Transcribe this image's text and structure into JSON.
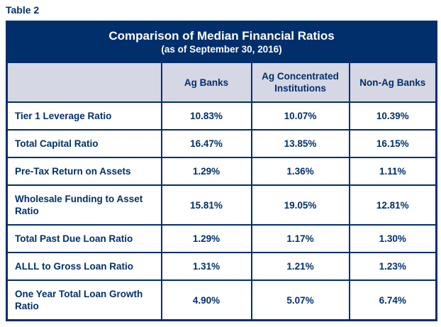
{
  "page": {
    "table_label": "Table 2"
  },
  "table": {
    "title": "Comparison of Median Financial Ratios",
    "subtitle": "(as of September 30, 2016)",
    "columns": [
      "",
      "Ag Banks",
      "Ag Concentrated Institutions",
      "Non-Ag Banks"
    ],
    "rows": [
      {
        "label": "Tier 1 Leverage Ratio",
        "values": [
          "10.83%",
          "10.07%",
          "10.39%"
        ]
      },
      {
        "label": "Total Capital Ratio",
        "values": [
          "16.47%",
          "13.85%",
          "16.15%"
        ]
      },
      {
        "label": "Pre-Tax Return on Assets",
        "values": [
          "1.29%",
          "1.36%",
          "1.11%"
        ]
      },
      {
        "label": "Wholesale Funding to Asset Ratio",
        "values": [
          "15.81%",
          "19.05%",
          "12.81%"
        ]
      },
      {
        "label": "Total Past Due Loan Ratio",
        "values": [
          "1.29%",
          "1.17%",
          "1.30%"
        ]
      },
      {
        "label": "ALLL to Gross Loan Ratio",
        "values": [
          "1.31%",
          "1.21%",
          "1.23%"
        ]
      },
      {
        "label": "One Year Total Loan Growth Ratio",
        "values": [
          "4.90%",
          "5.07%",
          "6.74%"
        ]
      }
    ],
    "colors": {
      "navy": "#002f6c",
      "header_row_bg": "#d5d7e4",
      "body_bg": "#ffffff",
      "title_text": "#ffffff",
      "cell_text": "#002f6c"
    }
  },
  "chart_data": {
    "type": "table",
    "title": "Comparison of Median Financial Ratios",
    "subtitle": "(as of September 30, 2016)",
    "categories": [
      "Ag Banks",
      "Ag Concentrated Institutions",
      "Non-Ag Banks"
    ],
    "series": [
      {
        "name": "Tier 1 Leverage Ratio",
        "values": [
          10.83,
          10.07,
          10.39
        ]
      },
      {
        "name": "Total Capital Ratio",
        "values": [
          16.47,
          13.85,
          16.15
        ]
      },
      {
        "name": "Pre-Tax Return on Assets",
        "values": [
          1.29,
          1.36,
          1.11
        ]
      },
      {
        "name": "Wholesale Funding to Asset Ratio",
        "values": [
          15.81,
          19.05,
          12.81
        ]
      },
      {
        "name": "Total Past Due Loan Ratio",
        "values": [
          1.29,
          1.17,
          1.3
        ]
      },
      {
        "name": "ALLL to Gross Loan Ratio",
        "values": [
          1.31,
          1.21,
          1.23
        ]
      },
      {
        "name": "One Year Total Loan Growth Ratio",
        "values": [
          4.9,
          5.07,
          6.74
        ]
      }
    ],
    "unit": "%"
  }
}
